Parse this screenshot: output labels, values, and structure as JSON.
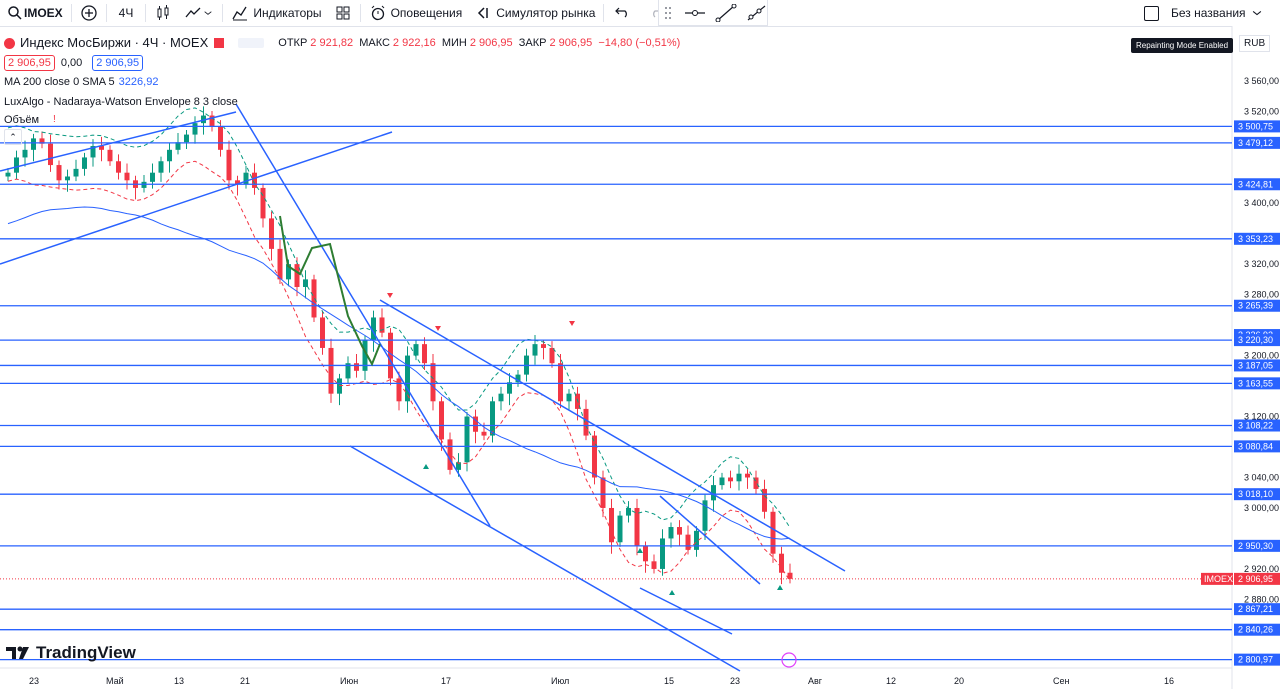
{
  "toolbar": {
    "symbol": "IMOEX",
    "interval": "4Ч",
    "indicators_label": "Индикаторы",
    "alerts_label": "Оповещения",
    "replay_label": "Симулятор рынка",
    "layout_name": "Без названия"
  },
  "legend": {
    "title": "Индекс МосБиржи · 4Ч · MOEX",
    "open_label": "ОТКР",
    "open": "2 921,82",
    "high_label": "МАКС",
    "high": "2 922,16",
    "low_label": "МИН",
    "low": "2 906,95",
    "close_label": "ЗАКР",
    "close": "2 906,95",
    "change": "−14,80 (−0,51%)",
    "bid": "2 906,95",
    "spread": "0,00",
    "ask": "2 906,95",
    "ma_label": "MA 200 close 0 SMA 5",
    "ma_value": "3226,92",
    "envelope_label": "LuxAlgo - Nadaraya-Watson Envelope 8 3 close",
    "volume_label": "Объём"
  },
  "tooltip": "Repainting Mode Enabled",
  "currency": "RUB",
  "brand": "TradingView",
  "colors": {
    "up": "#089981",
    "down": "#f23645",
    "line": "#2962ff",
    "envelope": "#2e7d32"
  },
  "chart_data": {
    "type": "candlestick",
    "symbol_tag": "IMOEX",
    "last_price": "2 906,95",
    "ylim": [
      2790,
      3580
    ],
    "y_ticks": [
      "3 560,00",
      "3 520,00",
      "3 400,00",
      "3 320,00",
      "3 280,00",
      "3 200,00",
      "3 120,00",
      "3 040,00",
      "3 000,00",
      "2 920,00",
      "2 880,00"
    ],
    "level_labels": [
      "3 500,75",
      "3 479,12",
      "3 424,81",
      "3 353,23",
      "3 265,39",
      "3 226,92",
      "3 220,30",
      "3 187,05",
      "3 163,55",
      "3 108,22",
      "3 080,84",
      "3 018,10",
      "2 950,30",
      "2 867,21",
      "2 840,26",
      "2 800,97"
    ],
    "levels": [
      3500.75,
      3479.12,
      3424.81,
      3353.23,
      3265.39,
      3220.3,
      3187.05,
      3163.55,
      3108.22,
      3080.84,
      3018.1,
      2950.3,
      2867.21,
      2840.26,
      2800.97
    ],
    "x_labels": [
      "23",
      "Май",
      "13",
      "21",
      "Июн",
      "17",
      "Июл",
      "15",
      "23",
      "Авг",
      "12",
      "20",
      "Сен",
      "16"
    ],
    "close_series": [
      3440,
      3460,
      3470,
      3485,
      3478,
      3450,
      3430,
      3435,
      3445,
      3460,
      3475,
      3470,
      3455,
      3440,
      3430,
      3420,
      3428,
      3440,
      3455,
      3470,
      3480,
      3490,
      3505,
      3515,
      3500,
      3470,
      3430,
      3425,
      3440,
      3420,
      3380,
      3340,
      3300,
      3320,
      3290,
      3300,
      3250,
      3210,
      3150,
      3170,
      3190,
      3180,
      3220,
      3250,
      3230,
      3170,
      3140,
      3200,
      3215,
      3190,
      3140,
      3090,
      3050,
      3060,
      3120,
      3100,
      3095,
      3140,
      3150,
      3165,
      3175,
      3200,
      3215,
      3210,
      3190,
      3140,
      3150,
      3130,
      3095,
      3040,
      3000,
      2955,
      2990,
      3000,
      2950,
      2930,
      2920,
      2960,
      2975,
      2965,
      2945,
      2970,
      3010,
      3030,
      3040,
      3035,
      3045,
      3040,
      3025,
      2995,
      2940,
      2915,
      2907
    ]
  }
}
